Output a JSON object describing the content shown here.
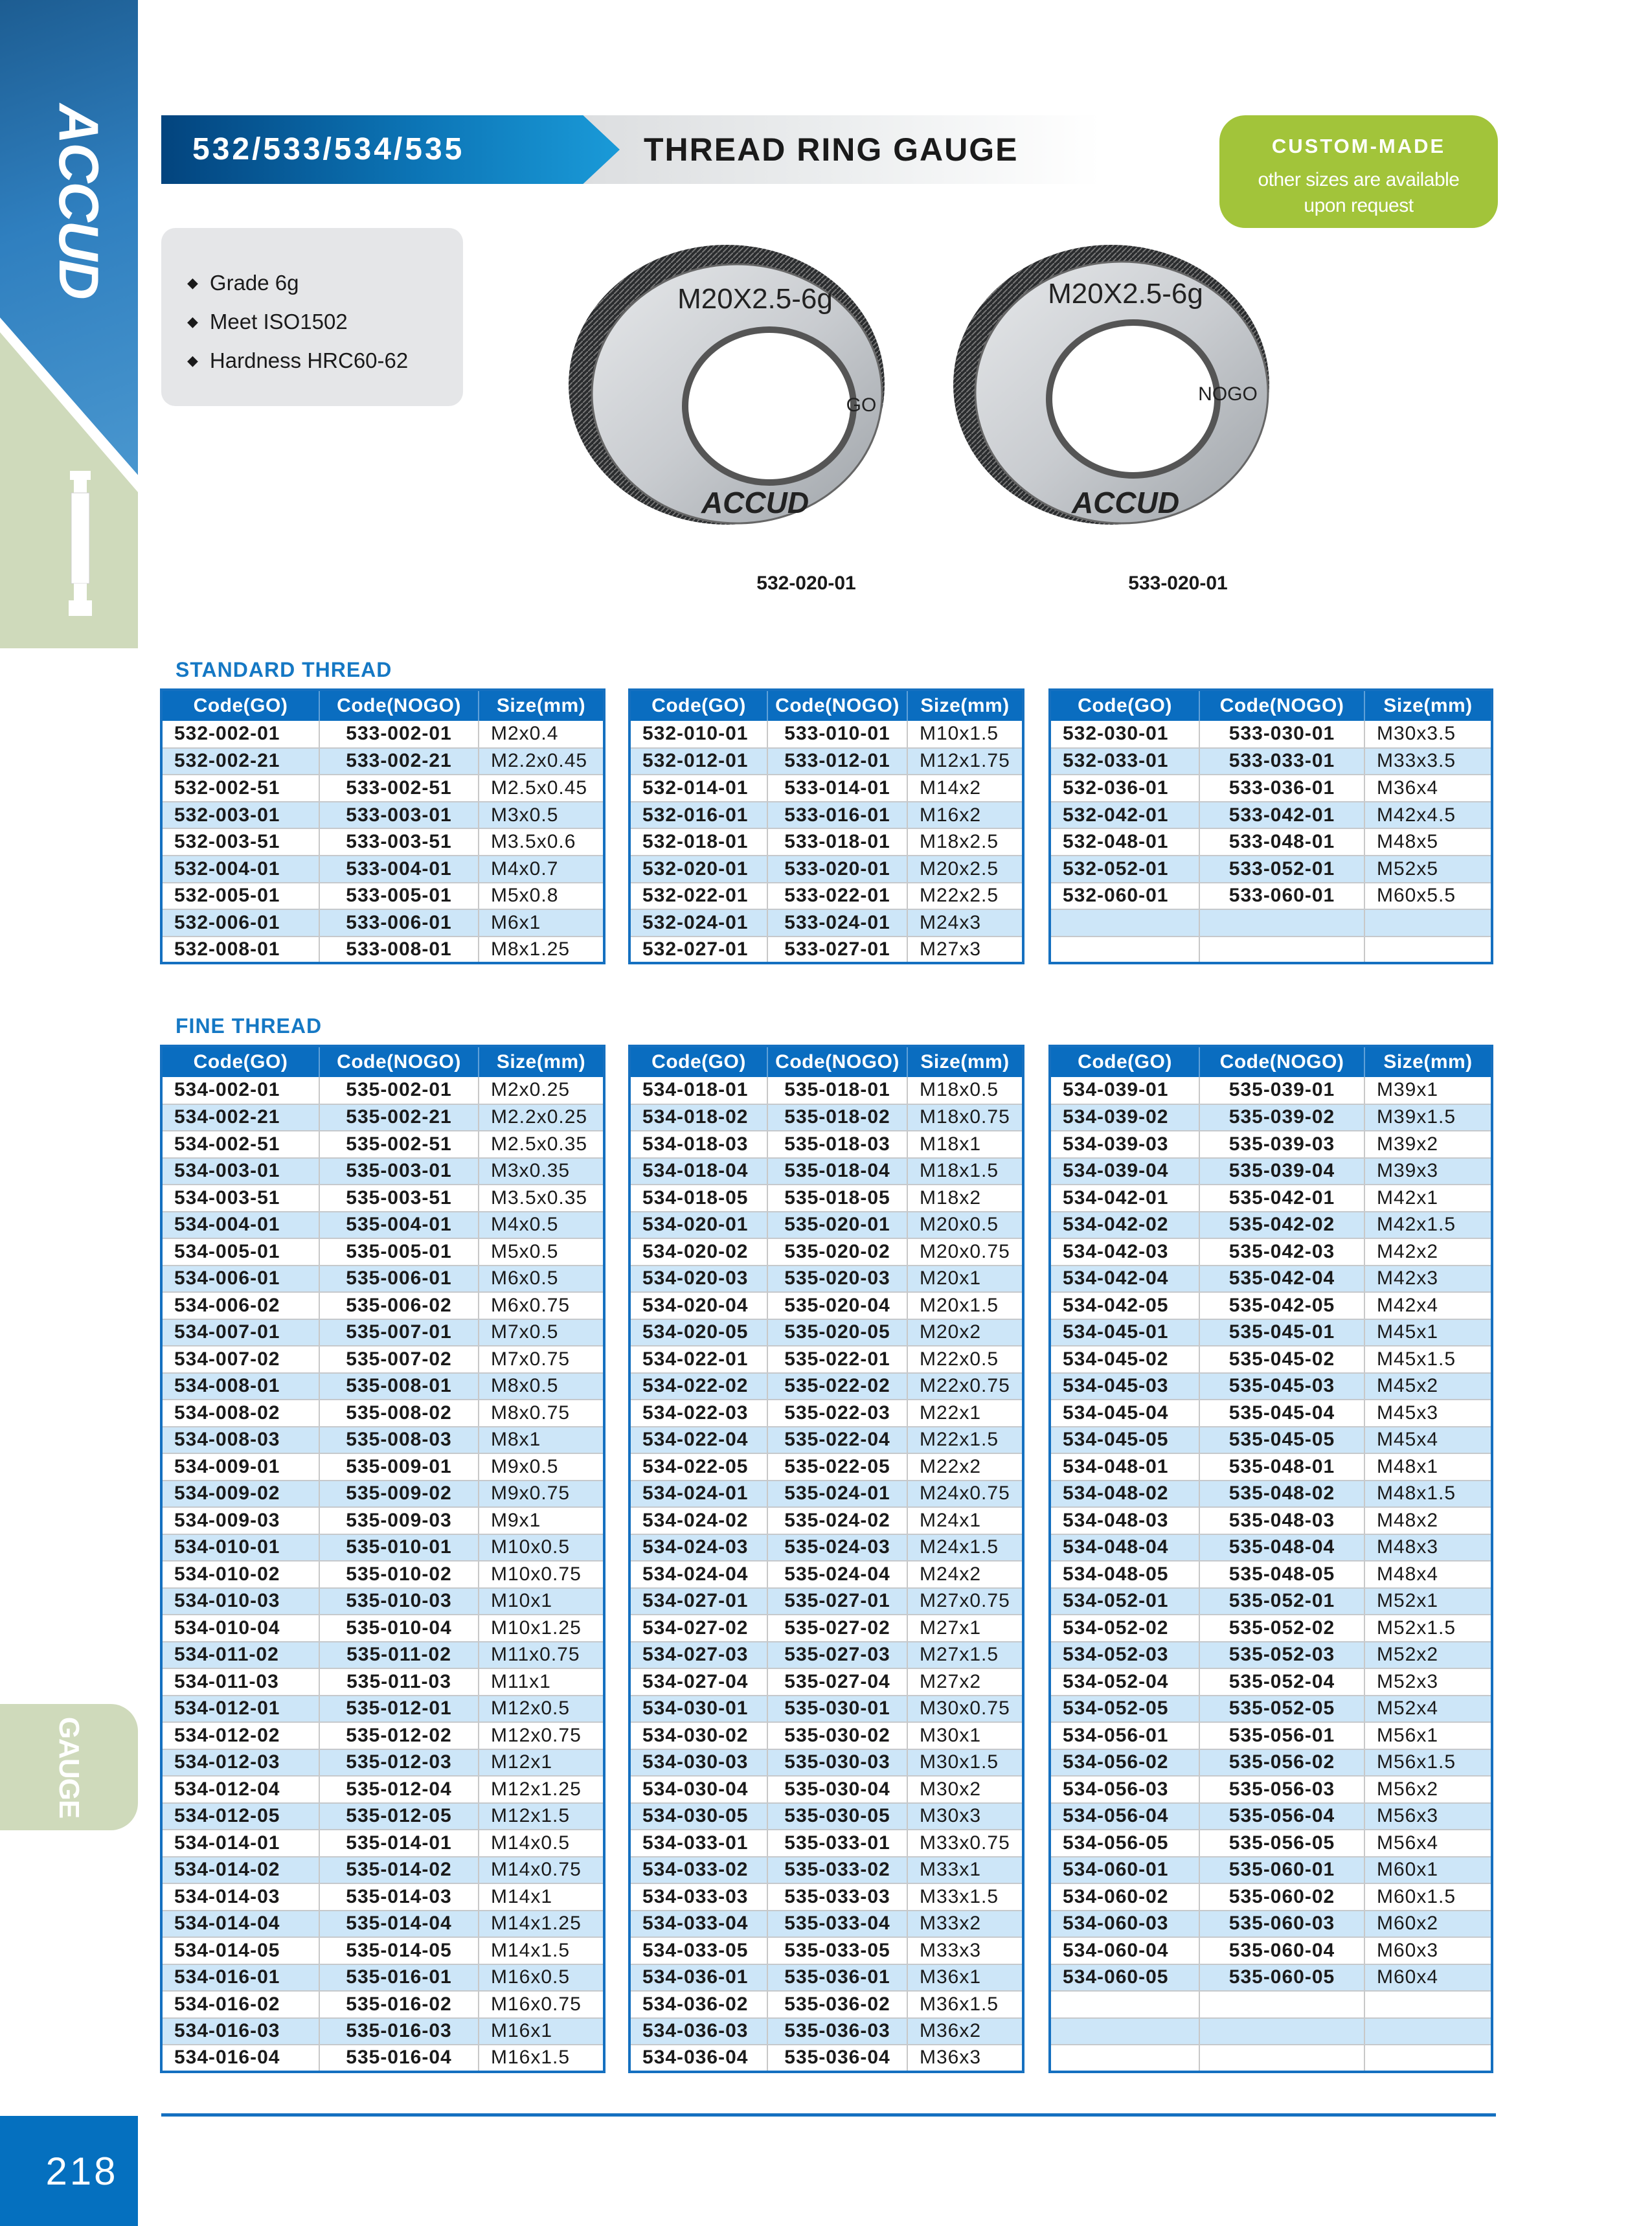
{
  "sidebar": {
    "brand": "ACCUD",
    "section_tab": "GAUGE",
    "page_number": "218"
  },
  "header": {
    "code": "532/533/534/535",
    "title": "THREAD RING GAUGE"
  },
  "badge": {
    "title": "CUSTOM-MADE",
    "line1": "other sizes are available",
    "line2": "upon request",
    "color": "#a2c43a"
  },
  "features": [
    "Grade 6g",
    "Meet ISO1502",
    "Hardness HRC60-62"
  ],
  "products": [
    {
      "marking": "M20X2.5-6g",
      "type": "GO",
      "brand": "ACCUD",
      "label": "532-020-01"
    },
    {
      "marking": "M20X2.5-6g",
      "type": "NOGO",
      "brand": "ACCUD",
      "label": "533-020-01"
    }
  ],
  "columns": [
    "Code(GO)",
    "Code(NOGO)",
    "Size(mm)"
  ],
  "standard": {
    "title": "STANDARD THREAD",
    "tables": [
      {
        "rows": [
          [
            "532-002-01",
            "533-002-01",
            "M2x0.4"
          ],
          [
            "532-002-21",
            "533-002-21",
            "M2.2x0.45"
          ],
          [
            "532-002-51",
            "533-002-51",
            "M2.5x0.45"
          ],
          [
            "532-003-01",
            "533-003-01",
            "M3x0.5"
          ],
          [
            "532-003-51",
            "533-003-51",
            "M3.5x0.6"
          ],
          [
            "532-004-01",
            "533-004-01",
            "M4x0.7"
          ],
          [
            "532-005-01",
            "533-005-01",
            "M5x0.8"
          ],
          [
            "532-006-01",
            "533-006-01",
            "M6x1"
          ],
          [
            "532-008-01",
            "533-008-01",
            "M8x1.25"
          ]
        ]
      },
      {
        "rows": [
          [
            "532-010-01",
            "533-010-01",
            "M10x1.5"
          ],
          [
            "532-012-01",
            "533-012-01",
            "M12x1.75"
          ],
          [
            "532-014-01",
            "533-014-01",
            "M14x2"
          ],
          [
            "532-016-01",
            "533-016-01",
            "M16x2"
          ],
          [
            "532-018-01",
            "533-018-01",
            "M18x2.5"
          ],
          [
            "532-020-01",
            "533-020-01",
            "M20x2.5"
          ],
          [
            "532-022-01",
            "533-022-01",
            "M22x2.5"
          ],
          [
            "532-024-01",
            "533-024-01",
            "M24x3"
          ],
          [
            "532-027-01",
            "533-027-01",
            "M27x3"
          ]
        ]
      },
      {
        "rows": [
          [
            "532-030-01",
            "533-030-01",
            "M30x3.5"
          ],
          [
            "532-033-01",
            "533-033-01",
            "M33x3.5"
          ],
          [
            "532-036-01",
            "533-036-01",
            "M36x4"
          ],
          [
            "532-042-01",
            "533-042-01",
            "M42x4.5"
          ],
          [
            "532-048-01",
            "533-048-01",
            "M48x5"
          ],
          [
            "532-052-01",
            "533-052-01",
            "M52x5"
          ],
          [
            "532-060-01",
            "533-060-01",
            "M60x5.5"
          ],
          [
            "",
            "",
            ""
          ],
          [
            "",
            "",
            ""
          ]
        ]
      }
    ]
  },
  "fine": {
    "title": "FINE THREAD",
    "tables": [
      {
        "rows": [
          [
            "534-002-01",
            "535-002-01",
            "M2x0.25"
          ],
          [
            "534-002-21",
            "535-002-21",
            "M2.2x0.25"
          ],
          [
            "534-002-51",
            "535-002-51",
            "M2.5x0.35"
          ],
          [
            "534-003-01",
            "535-003-01",
            "M3x0.35"
          ],
          [
            "534-003-51",
            "535-003-51",
            "M3.5x0.35"
          ],
          [
            "534-004-01",
            "535-004-01",
            "M4x0.5"
          ],
          [
            "534-005-01",
            "535-005-01",
            "M5x0.5"
          ],
          [
            "534-006-01",
            "535-006-01",
            "M6x0.5"
          ],
          [
            "534-006-02",
            "535-006-02",
            "M6x0.75"
          ],
          [
            "534-007-01",
            "535-007-01",
            "M7x0.5"
          ],
          [
            "534-007-02",
            "535-007-02",
            "M7x0.75"
          ],
          [
            "534-008-01",
            "535-008-01",
            "M8x0.5"
          ],
          [
            "534-008-02",
            "535-008-02",
            "M8x0.75"
          ],
          [
            "534-008-03",
            "535-008-03",
            "M8x1"
          ],
          [
            "534-009-01",
            "535-009-01",
            "M9x0.5"
          ],
          [
            "534-009-02",
            "535-009-02",
            "M9x0.75"
          ],
          [
            "534-009-03",
            "535-009-03",
            "M9x1"
          ],
          [
            "534-010-01",
            "535-010-01",
            "M10x0.5"
          ],
          [
            "534-010-02",
            "535-010-02",
            "M10x0.75"
          ],
          [
            "534-010-03",
            "535-010-03",
            "M10x1"
          ],
          [
            "534-010-04",
            "535-010-04",
            "M10x1.25"
          ],
          [
            "534-011-02",
            "535-011-02",
            "M11x0.75"
          ],
          [
            "534-011-03",
            "535-011-03",
            "M11x1"
          ],
          [
            "534-012-01",
            "535-012-01",
            "M12x0.5"
          ],
          [
            "534-012-02",
            "535-012-02",
            "M12x0.75"
          ],
          [
            "534-012-03",
            "535-012-03",
            "M12x1"
          ],
          [
            "534-012-04",
            "535-012-04",
            "M12x1.25"
          ],
          [
            "534-012-05",
            "535-012-05",
            "M12x1.5"
          ],
          [
            "534-014-01",
            "535-014-01",
            "M14x0.5"
          ],
          [
            "534-014-02",
            "535-014-02",
            "M14x0.75"
          ],
          [
            "534-014-03",
            "535-014-03",
            "M14x1"
          ],
          [
            "534-014-04",
            "535-014-04",
            "M14x1.25"
          ],
          [
            "534-014-05",
            "535-014-05",
            "M14x1.5"
          ],
          [
            "534-016-01",
            "535-016-01",
            "M16x0.5"
          ],
          [
            "534-016-02",
            "535-016-02",
            "M16x0.75"
          ],
          [
            "534-016-03",
            "535-016-03",
            "M16x1"
          ],
          [
            "534-016-04",
            "535-016-04",
            "M16x1.5"
          ]
        ]
      },
      {
        "rows": [
          [
            "534-018-01",
            "535-018-01",
            "M18x0.5"
          ],
          [
            "534-018-02",
            "535-018-02",
            "M18x0.75"
          ],
          [
            "534-018-03",
            "535-018-03",
            "M18x1"
          ],
          [
            "534-018-04",
            "535-018-04",
            "M18x1.5"
          ],
          [
            "534-018-05",
            "535-018-05",
            "M18x2"
          ],
          [
            "534-020-01",
            "535-020-01",
            "M20x0.5"
          ],
          [
            "534-020-02",
            "535-020-02",
            "M20x0.75"
          ],
          [
            "534-020-03",
            "535-020-03",
            "M20x1"
          ],
          [
            "534-020-04",
            "535-020-04",
            "M20x1.5"
          ],
          [
            "534-020-05",
            "535-020-05",
            "M20x2"
          ],
          [
            "534-022-01",
            "535-022-01",
            "M22x0.5"
          ],
          [
            "534-022-02",
            "535-022-02",
            "M22x0.75"
          ],
          [
            "534-022-03",
            "535-022-03",
            "M22x1"
          ],
          [
            "534-022-04",
            "535-022-04",
            "M22x1.5"
          ],
          [
            "534-022-05",
            "535-022-05",
            "M22x2"
          ],
          [
            "534-024-01",
            "535-024-01",
            "M24x0.75"
          ],
          [
            "534-024-02",
            "535-024-02",
            "M24x1"
          ],
          [
            "534-024-03",
            "535-024-03",
            "M24x1.5"
          ],
          [
            "534-024-04",
            "535-024-04",
            "M24x2"
          ],
          [
            "534-027-01",
            "535-027-01",
            "M27x0.75"
          ],
          [
            "534-027-02",
            "535-027-02",
            "M27x1"
          ],
          [
            "534-027-03",
            "535-027-03",
            "M27x1.5"
          ],
          [
            "534-027-04",
            "535-027-04",
            "M27x2"
          ],
          [
            "534-030-01",
            "535-030-01",
            "M30x0.75"
          ],
          [
            "534-030-02",
            "535-030-02",
            "M30x1"
          ],
          [
            "534-030-03",
            "535-030-03",
            "M30x1.5"
          ],
          [
            "534-030-04",
            "535-030-04",
            "M30x2"
          ],
          [
            "534-030-05",
            "535-030-05",
            "M30x3"
          ],
          [
            "534-033-01",
            "535-033-01",
            "M33x0.75"
          ],
          [
            "534-033-02",
            "535-033-02",
            "M33x1"
          ],
          [
            "534-033-03",
            "535-033-03",
            "M33x1.5"
          ],
          [
            "534-033-04",
            "535-033-04",
            "M33x2"
          ],
          [
            "534-033-05",
            "535-033-05",
            "M33x3"
          ],
          [
            "534-036-01",
            "535-036-01",
            "M36x1"
          ],
          [
            "534-036-02",
            "535-036-02",
            "M36x1.5"
          ],
          [
            "534-036-03",
            "535-036-03",
            "M36x2"
          ],
          [
            "534-036-04",
            "535-036-04",
            "M36x3"
          ]
        ]
      },
      {
        "rows": [
          [
            "534-039-01",
            "535-039-01",
            "M39x1"
          ],
          [
            "534-039-02",
            "535-039-02",
            "M39x1.5"
          ],
          [
            "534-039-03",
            "535-039-03",
            "M39x2"
          ],
          [
            "534-039-04",
            "535-039-04",
            "M39x3"
          ],
          [
            "534-042-01",
            "535-042-01",
            "M42x1"
          ],
          [
            "534-042-02",
            "535-042-02",
            "M42x1.5"
          ],
          [
            "534-042-03",
            "535-042-03",
            "M42x2"
          ],
          [
            "534-042-04",
            "535-042-04",
            "M42x3"
          ],
          [
            "534-042-05",
            "535-042-05",
            "M42x4"
          ],
          [
            "534-045-01",
            "535-045-01",
            "M45x1"
          ],
          [
            "534-045-02",
            "535-045-02",
            "M45x1.5"
          ],
          [
            "534-045-03",
            "535-045-03",
            "M45x2"
          ],
          [
            "534-045-04",
            "535-045-04",
            "M45x3"
          ],
          [
            "534-045-05",
            "535-045-05",
            "M45x4"
          ],
          [
            "534-048-01",
            "535-048-01",
            "M48x1"
          ],
          [
            "534-048-02",
            "535-048-02",
            "M48x1.5"
          ],
          [
            "534-048-03",
            "535-048-03",
            "M48x2"
          ],
          [
            "534-048-04",
            "535-048-04",
            "M48x3"
          ],
          [
            "534-048-05",
            "535-048-05",
            "M48x4"
          ],
          [
            "534-052-01",
            "535-052-01",
            "M52x1"
          ],
          [
            "534-052-02",
            "535-052-02",
            "M52x1.5"
          ],
          [
            "534-052-03",
            "535-052-03",
            "M52x2"
          ],
          [
            "534-052-04",
            "535-052-04",
            "M52x3"
          ],
          [
            "534-052-05",
            "535-052-05",
            "M52x4"
          ],
          [
            "534-056-01",
            "535-056-01",
            "M56x1"
          ],
          [
            "534-056-02",
            "535-056-02",
            "M56x1.5"
          ],
          [
            "534-056-03",
            "535-056-03",
            "M56x2"
          ],
          [
            "534-056-04",
            "535-056-04",
            "M56x3"
          ],
          [
            "534-056-05",
            "535-056-05",
            "M56x4"
          ],
          [
            "534-060-01",
            "535-060-01",
            "M60x1"
          ],
          [
            "534-060-02",
            "535-060-02",
            "M60x1.5"
          ],
          [
            "534-060-03",
            "535-060-03",
            "M60x2"
          ],
          [
            "534-060-04",
            "535-060-04",
            "M60x3"
          ],
          [
            "534-060-05",
            "535-060-05",
            "M60x4"
          ],
          [
            "",
            "",
            ""
          ],
          [
            "",
            "",
            ""
          ],
          [
            "",
            "",
            ""
          ]
        ]
      }
    ]
  },
  "colors": {
    "header_blue": "#0a6dc0",
    "row_alt": "#cde6f8",
    "section_title": "#1578c4",
    "side_green": "#cfdabb"
  }
}
